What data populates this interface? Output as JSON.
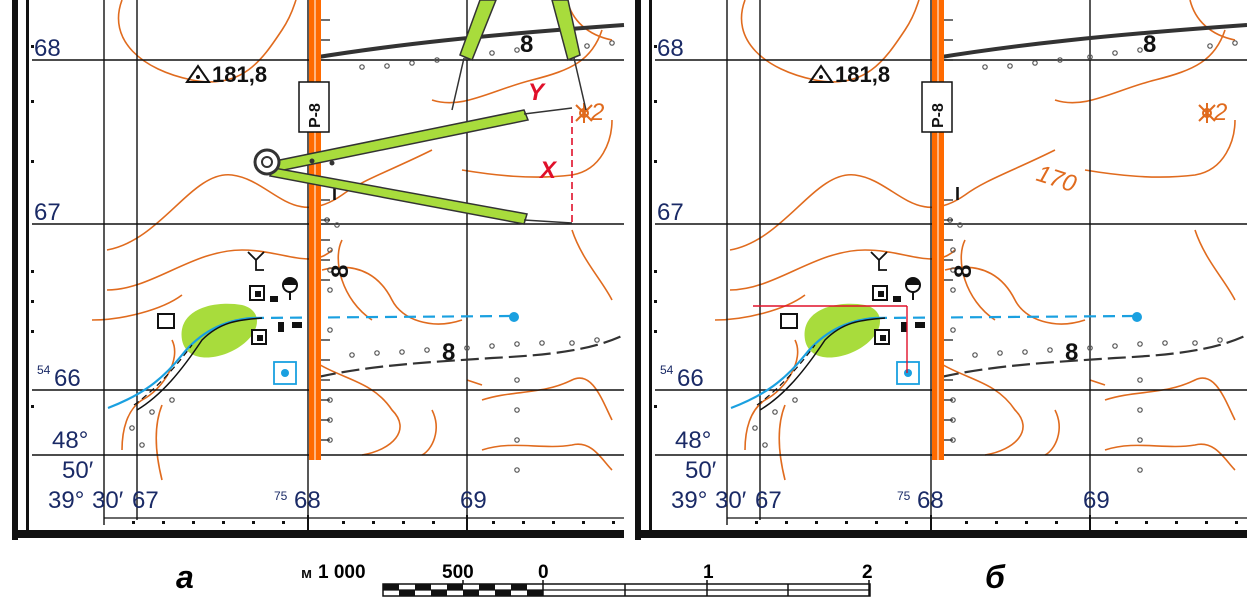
{
  "panels": [
    {
      "id": "a",
      "label": "а",
      "grid_north_top": "68",
      "grid_north_mid": "67",
      "grid_north_low_prefix": "54",
      "grid_north_low": "66",
      "east_labels": [
        "67",
        "68",
        "69"
      ],
      "east_prefix": "75",
      "spot_height": "181,8",
      "road_label": "Р-8",
      "road_marker": "I",
      "road_marker2": "8",
      "fence_label": "8",
      "corner_lat_deg": "48°",
      "corner_lat_min": "50′",
      "corner_lon_deg": "39°",
      "corner_lon_min": "30′",
      "spring_label": "2",
      "measure_y": "Y",
      "measure_x": "X",
      "contour_label": ""
    },
    {
      "id": "b",
      "label": "б",
      "grid_north_top": "68",
      "grid_north_mid": "67",
      "grid_north_low_prefix": "54",
      "grid_north_low": "66",
      "east_labels": [
        "67",
        "68",
        "69"
      ],
      "east_prefix": "75",
      "spot_height": "181,8",
      "road_label": "Р-8",
      "road_marker": "I",
      "road_marker2": "8",
      "fence_label": "8",
      "corner_lat_deg": "48°",
      "corner_lat_min": "50′",
      "corner_lon_deg": "39°",
      "corner_lon_min": "30′",
      "spring_label": "2",
      "contour_label": "170"
    }
  ],
  "scale_bar": {
    "unit_label": "м",
    "ticks": [
      "1 000",
      "500",
      "0",
      "1",
      "2"
    ]
  },
  "colors": {
    "grid_text": "#1a2a66",
    "contour": "#e06b1e",
    "water": "#1aa0e0",
    "vegetation": "#a8dc3c",
    "road": "#ff6a00",
    "measure_red": "#e0102a",
    "compass_green": "#a8dc3c"
  }
}
